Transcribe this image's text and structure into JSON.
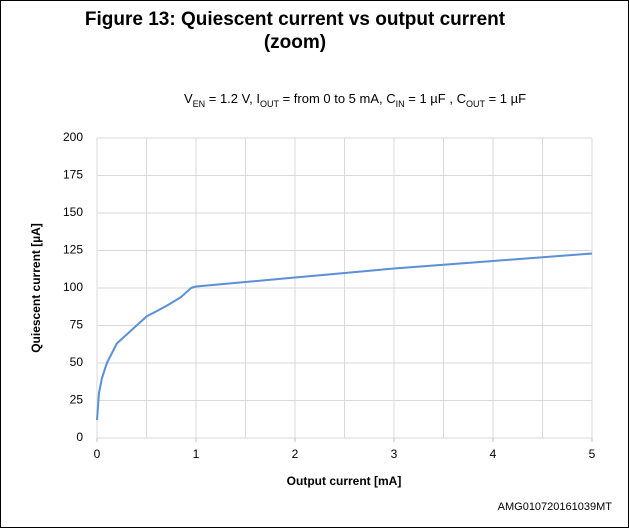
{
  "chart_data": {
    "type": "line",
    "title": "Figure 13: Quiescent current vs output current (zoom)",
    "subtitle": [
      "V",
      "EN",
      " = 1.2 V, I",
      "OUT",
      " = from 0 to 5 mA, C",
      "IN",
      " = 1 µF , C",
      "OUT",
      " = 1 µF"
    ],
    "x_label": "Output current [mA]",
    "y_label": "Quiescent current [µA]",
    "footnote": "AMG010720161039MT",
    "x": [
      0,
      0.02,
      0.05,
      0.1,
      0.2,
      0.3,
      0.4,
      0.5,
      0.7,
      0.85,
      0.95,
      1,
      2,
      3,
      4,
      5
    ],
    "values": [
      12,
      30,
      40,
      50,
      63,
      69,
      75,
      81,
      88,
      94,
      100,
      101,
      107,
      113,
      118,
      123
    ],
    "color": "#5b8fd6",
    "xlim": [
      0,
      5
    ],
    "xticks": [
      0,
      1,
      2,
      3,
      4,
      5
    ],
    "xgrid": [
      0,
      0.5,
      1,
      1.5,
      2,
      2.5,
      3,
      3.5,
      4,
      4.5,
      5
    ],
    "ylim": [
      0,
      200
    ],
    "yticks": [
      0,
      25,
      50,
      75,
      100,
      125,
      150,
      175,
      200
    ],
    "grid": true
  }
}
